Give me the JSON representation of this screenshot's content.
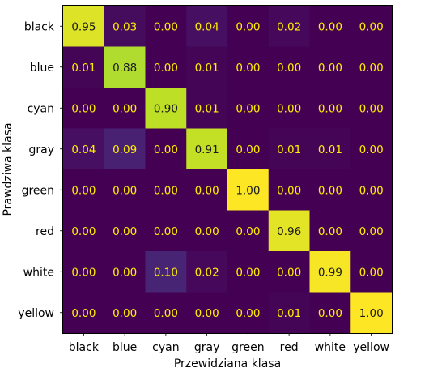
{
  "chart_data": {
    "type": "heatmap",
    "title": "",
    "xlabel": "Przewidziana klasa",
    "ylabel": "Prawdziwa klasa",
    "x_categories": [
      "black",
      "blue",
      "cyan",
      "gray",
      "green",
      "red",
      "white",
      "yellow"
    ],
    "y_categories": [
      "black",
      "blue",
      "cyan",
      "gray",
      "green",
      "red",
      "white",
      "yellow"
    ],
    "values": [
      [
        0.95,
        0.03,
        0.0,
        0.04,
        0.0,
        0.02,
        0.0,
        0.0
      ],
      [
        0.01,
        0.88,
        0.0,
        0.01,
        0.0,
        0.0,
        0.0,
        0.0
      ],
      [
        0.0,
        0.0,
        0.9,
        0.01,
        0.0,
        0.0,
        0.0,
        0.0
      ],
      [
        0.04,
        0.09,
        0.0,
        0.91,
        0.0,
        0.01,
        0.01,
        0.0
      ],
      [
        0.0,
        0.0,
        0.0,
        0.0,
        1.0,
        0.0,
        0.0,
        0.0
      ],
      [
        0.0,
        0.0,
        0.0,
        0.0,
        0.0,
        0.96,
        0.0,
        0.0
      ],
      [
        0.0,
        0.0,
        0.1,
        0.02,
        0.0,
        0.0,
        0.99,
        0.0
      ],
      [
        0.0,
        0.0,
        0.0,
        0.0,
        0.0,
        0.01,
        0.0,
        1.0
      ]
    ],
    "value_format": "0.00",
    "value_range": [
      0,
      1
    ],
    "colormap": "viridis",
    "label_color_low": "#ffee00",
    "label_color_high": "#1a1a1a",
    "grid": false,
    "legend": "none"
  }
}
